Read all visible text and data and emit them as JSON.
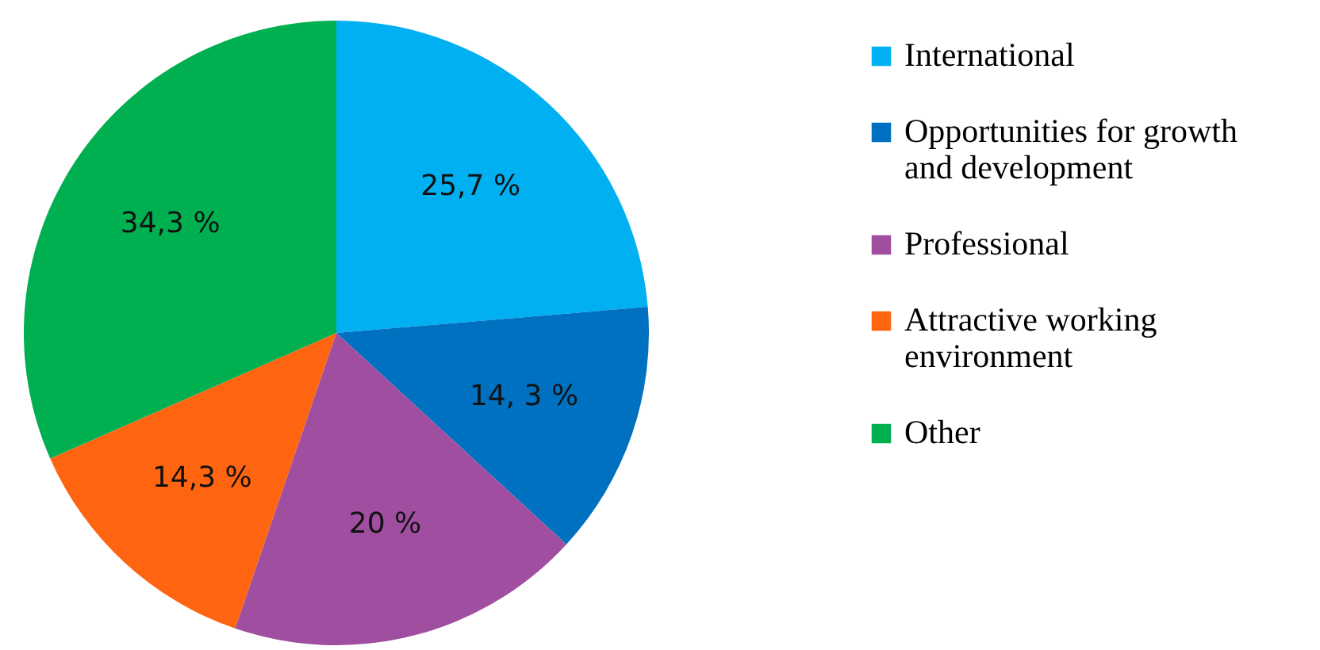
{
  "chart_data": {
    "type": "pie",
    "categories": [
      "International",
      "Opportunities for growth and development",
      "Professional",
      "Attractive working environment",
      "Other"
    ],
    "values": [
      25.7,
      14.3,
      20,
      14.3,
      34.3
    ],
    "colors": [
      "#00b0f0",
      "#0070c0",
      "#a04ea0",
      "#ff6510",
      "#00b050"
    ],
    "value_labels": [
      "25,7 %",
      "14, 3 %",
      "20 %",
      "14,3 %",
      "34,3 %"
    ],
    "legend": "right"
  }
}
